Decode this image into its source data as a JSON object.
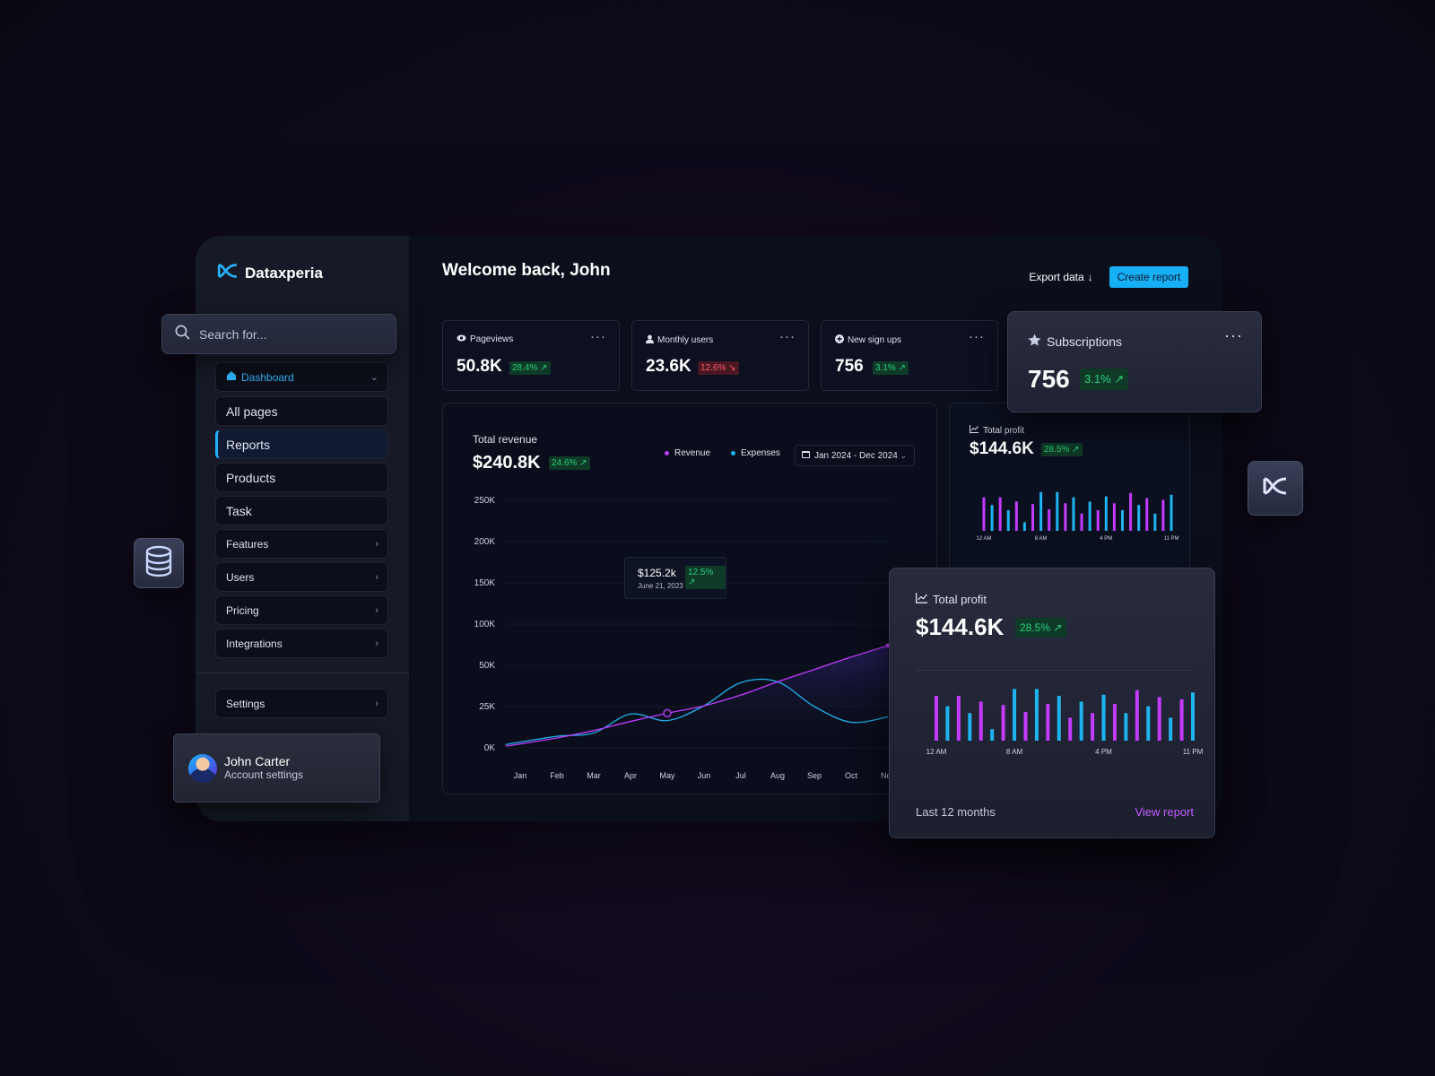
{
  "brand": {
    "name": "Dataxperia"
  },
  "search": {
    "placeholder": "Search for..."
  },
  "sidebar": {
    "items": [
      {
        "label": "Dashboard",
        "icon": "home-icon",
        "has_chevron": true
      },
      {
        "label": "All pages"
      },
      {
        "label": "Reports",
        "active": true
      },
      {
        "label": "Products"
      },
      {
        "label": "Task"
      },
      {
        "label": "Features",
        "has_chevron": true
      },
      {
        "label": "Users",
        "has_chevron": true
      },
      {
        "label": "Pricing",
        "has_chevron": true
      },
      {
        "label": "Integrations",
        "has_chevron": true
      }
    ],
    "settings": {
      "label": "Settings"
    }
  },
  "account": {
    "name": "John Carter",
    "subtitle": "Account settings"
  },
  "header": {
    "welcome": "Welcome back, John",
    "export_label": "Export data",
    "create_label": "Create report"
  },
  "stats": [
    {
      "label": "Pageviews",
      "icon": "eye-icon",
      "value": "50.8K",
      "change": "28.4%",
      "trend": "up"
    },
    {
      "label": "Monthly users",
      "icon": "user-icon",
      "value": "23.6K",
      "change": "12.6%",
      "trend": "down"
    },
    {
      "label": "New sign ups",
      "icon": "plus-circle-icon",
      "value": "756",
      "change": "3.1%",
      "trend": "up"
    }
  ],
  "subscriptions": {
    "label": "Subscriptions",
    "icon": "star-icon",
    "value": "756",
    "change": "3.1%"
  },
  "revenue": {
    "title": "Total revenue",
    "value": "$240.8K",
    "change": "24.6%",
    "legend_revenue": "Revenue",
    "legend_expenses": "Expenses",
    "date_range": "Jan 2024 - Dec 2024",
    "tooltip": {
      "value": "$125.2k",
      "change": "12.5%",
      "date": "June 21, 2023"
    }
  },
  "profit_small": {
    "title": "Total profit",
    "value": "$144.6K",
    "change": "28.5%"
  },
  "profit_big": {
    "title": "Total profit",
    "value": "$144.6K",
    "change": "28.5%",
    "footer_left": "Last 12 months",
    "footer_right": "View report"
  },
  "colors": {
    "accent": "#17b0f5",
    "revenue": "#c23bff",
    "expenses": "#1fb4f0",
    "up": "#26d07a",
    "down": "#ff5b70"
  },
  "chart_data": [
    {
      "type": "area",
      "title": "Total revenue",
      "categories": [
        "Jan",
        "Feb",
        "Mar",
        "Apr",
        "May",
        "Jun",
        "Jul",
        "Aug",
        "Sep",
        "Oct",
        "Nov"
      ],
      "y_ticks": [
        "0K",
        "25K",
        "50K",
        "100K",
        "150K",
        "200K",
        "250K"
      ],
      "series": [
        {
          "name": "Revenue",
          "values": [
            0.04,
            0.24,
            0.42,
            0.64,
            0.84,
            1.02,
            1.28,
            1.6,
            1.9,
            2.2,
            2.48
          ]
        },
        {
          "name": "Expenses",
          "values": [
            0.08,
            0.28,
            0.36,
            0.82,
            0.66,
            1.02,
            1.58,
            1.6,
            1.0,
            0.62,
            0.75
          ]
        }
      ]
    },
    {
      "type": "bar",
      "title": "Total profit",
      "x_ticks": [
        "12 AM",
        "8 AM",
        "4 PM",
        "11 PM"
      ],
      "values": [
        0.78,
        0.6,
        0.78,
        0.48,
        0.68,
        0.2,
        0.62,
        0.9,
        0.5,
        0.9,
        0.64,
        0.78,
        0.4,
        0.68,
        0.48,
        0.8,
        0.64,
        0.48,
        0.88,
        0.6,
        0.76,
        0.4,
        0.72,
        0.84
      ]
    }
  ]
}
